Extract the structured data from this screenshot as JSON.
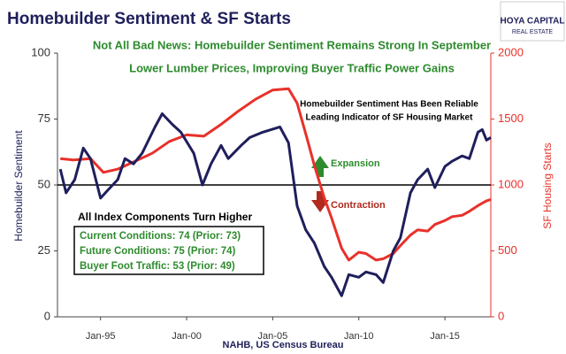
{
  "chart_data": {
    "type": "line",
    "title": "Homebuilder Sentiment & SF Starts",
    "subtitle": "Not All Bad News: Homebuilder Sentiment Remains Strong In September",
    "subtitle2": "Lower Lumber Prices, Improving Buyer Traffic Power Gains",
    "annotation_top": [
      "Homebuilder Sentiment Has Been Reliable",
      "Leading Indicator of SF Housing Market"
    ],
    "annotation_up": "Expansion",
    "annotation_down": "Contraction",
    "box_title": "All Index Components Turn Higher",
    "box_lines": [
      "Current Conditions: 74 (Prior: 73)",
      "Future Conditions: 75 (Prior: 74)",
      "Buyer Foot Traffic: 53 (Prior: 49)"
    ],
    "source": "NAHB, US Census Bureau",
    "logo": [
      "HOYA CAPITAL",
      "REAL ESTATE"
    ],
    "ylabel": "Homebuilder Sentiment",
    "y2label": "SF Housing Starts",
    "reference_line": 50,
    "xlim": [
      "1992-07",
      "2017-09"
    ],
    "xticks": [
      {
        "value": "1995-01",
        "label": "Jan-95"
      },
      {
        "value": "2000-01",
        "label": "Jan-00"
      },
      {
        "value": "2005-01",
        "label": "Jan-05"
      },
      {
        "value": "2010-01",
        "label": "Jan-10"
      },
      {
        "value": "2015-01",
        "label": "Jan-15"
      }
    ],
    "ylim": [
      0,
      100
    ],
    "yticks": [
      0,
      25,
      50,
      75,
      100
    ],
    "y2lim": [
      0,
      2000
    ],
    "y2ticks": [
      0,
      500,
      1000,
      1500,
      2000
    ],
    "series": [
      {
        "name": "Homebuilder Sentiment",
        "color": "#1f1f5c",
        "x": [
          "1992-09",
          "1993-01",
          "1993-07",
          "1994-01",
          "1994-06",
          "1995-01",
          "1995-06",
          "1996-01",
          "1996-06",
          "1996-12",
          "1997-06",
          "1998-03",
          "1998-08",
          "1999-03",
          "1999-09",
          "2000-06",
          "2000-12",
          "2001-06",
          "2002-01",
          "2002-06",
          "2003-03",
          "2003-09",
          "2004-06",
          "2005-06",
          "2005-12",
          "2006-06",
          "2006-12",
          "2007-06",
          "2008-01",
          "2008-06",
          "2009-01",
          "2009-06",
          "2010-01",
          "2010-06",
          "2011-01",
          "2011-06",
          "2012-01",
          "2012-06",
          "2013-01",
          "2013-06",
          "2014-01",
          "2014-06",
          "2015-01",
          "2015-06",
          "2016-01",
          "2016-06",
          "2016-12",
          "2017-03",
          "2017-06",
          "2017-09"
        ],
        "values": [
          56,
          47,
          52,
          64,
          60,
          45,
          48,
          52,
          60,
          58,
          62,
          72,
          77,
          73,
          70,
          62,
          50,
          58,
          65,
          60,
          65,
          68,
          70,
          72,
          66,
          42,
          33,
          28,
          19,
          15,
          8,
          16,
          15,
          17,
          16,
          13,
          25,
          30,
          47,
          52,
          56,
          49,
          57,
          59,
          61,
          60,
          70,
          71,
          67,
          68
        ]
      },
      {
        "name": "SF Housing Starts",
        "color": "#e8312a",
        "axis": "y2",
        "x": [
          "1992-09",
          "1993-06",
          "1994-06",
          "1995-03",
          "1996-01",
          "1997-01",
          "1998-01",
          "1999-01",
          "2000-01",
          "2001-01",
          "2002-01",
          "2003-01",
          "2004-01",
          "2005-01",
          "2005-12",
          "2006-06",
          "2007-01",
          "2007-06",
          "2008-01",
          "2008-06",
          "2009-01",
          "2009-06",
          "2010-01",
          "2010-06",
          "2011-01",
          "2011-06",
          "2012-01",
          "2012-06",
          "2013-01",
          "2013-06",
          "2014-01",
          "2014-06",
          "2015-01",
          "2015-06",
          "2016-01",
          "2016-06",
          "2017-01",
          "2017-06",
          "2017-09"
        ],
        "values": [
          1200,
          1190,
          1200,
          1095,
          1120,
          1180,
          1240,
          1330,
          1380,
          1370,
          1460,
          1560,
          1650,
          1720,
          1730,
          1620,
          1350,
          1150,
          900,
          750,
          520,
          430,
          490,
          480,
          430,
          440,
          480,
          540,
          620,
          660,
          650,
          700,
          730,
          760,
          770,
          800,
          850,
          880,
          890
        ]
      }
    ]
  }
}
